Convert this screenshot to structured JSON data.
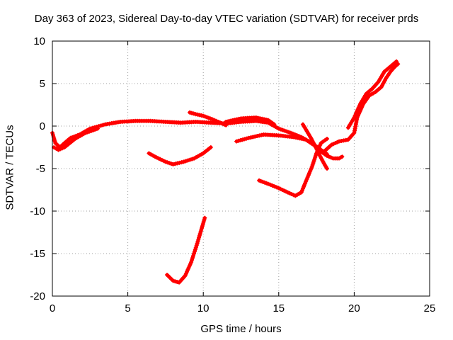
{
  "chart_data": {
    "type": "scatter",
    "title": "Day 363 of 2023, Sidereal Day-to-day VTEC variation (SDTVAR) for receiver prds",
    "xlabel": "GPS time / hours",
    "ylabel": "SDTVAR / TECUs",
    "xlim": [
      0,
      25
    ],
    "ylim": [
      -20,
      10
    ],
    "xticks": [
      0,
      5,
      10,
      15,
      20,
      25
    ],
    "yticks": [
      -20,
      -15,
      -10,
      -5,
      0,
      5,
      10
    ],
    "xtick_labels": [
      "0",
      "5",
      "10",
      "15",
      "20",
      "25"
    ],
    "ytick_labels": [
      "-20",
      "-15",
      "-10",
      "-5",
      "0",
      "5",
      "10"
    ],
    "grid": true,
    "marker_color": "#ff0000",
    "series": [
      {
        "name": "arc-main",
        "points": [
          [
            0.0,
            -0.8
          ],
          [
            0.2,
            -2.0
          ],
          [
            0.5,
            -2.5
          ],
          [
            0.8,
            -2.0
          ],
          [
            1.2,
            -1.4
          ],
          [
            1.8,
            -1.0
          ],
          [
            2.5,
            -0.3
          ],
          [
            3.5,
            0.2
          ],
          [
            4.5,
            0.5
          ],
          [
            5.5,
            0.6
          ],
          [
            6.5,
            0.6
          ],
          [
            7.5,
            0.5
          ],
          [
            8.5,
            0.4
          ],
          [
            9.5,
            0.5
          ],
          [
            10.5,
            0.4
          ],
          [
            11.5,
            0.3
          ],
          [
            12.5,
            0.5
          ],
          [
            13.5,
            0.6
          ],
          [
            14.3,
            0.4
          ],
          [
            15.0,
            -0.3
          ],
          [
            15.8,
            -0.8
          ],
          [
            16.5,
            -1.3
          ],
          [
            17.2,
            -2.0
          ],
          [
            17.8,
            -2.8
          ],
          [
            18.2,
            -3.3
          ]
        ]
      },
      {
        "name": "arc-start-lower",
        "points": [
          [
            0.1,
            -2.5
          ],
          [
            0.4,
            -2.8
          ],
          [
            0.8,
            -2.5
          ],
          [
            1.5,
            -1.5
          ],
          [
            2.2,
            -0.8
          ],
          [
            3.0,
            -0.3
          ]
        ]
      },
      {
        "name": "arc-hump",
        "points": [
          [
            9.1,
            1.6
          ],
          [
            9.5,
            1.4
          ],
          [
            10.0,
            1.2
          ],
          [
            10.6,
            0.8
          ],
          [
            11.0,
            0.5
          ],
          [
            11.5,
            0.1
          ]
        ]
      },
      {
        "name": "arc-mid-upper",
        "points": [
          [
            11.5,
            0.5
          ],
          [
            12.5,
            0.9
          ],
          [
            13.5,
            1.0
          ],
          [
            14.3,
            0.7
          ],
          [
            14.7,
            0.2
          ]
        ]
      },
      {
        "name": "arc-mid-lower",
        "points": [
          [
            12.2,
            -1.8
          ],
          [
            13.0,
            -1.4
          ],
          [
            14.0,
            -1.0
          ],
          [
            15.0,
            -1.1
          ],
          [
            16.0,
            -1.3
          ],
          [
            16.8,
            -1.6
          ],
          [
            17.3,
            -2.2
          ]
        ]
      },
      {
        "name": "arc-bowl",
        "points": [
          [
            6.4,
            -3.2
          ],
          [
            6.8,
            -3.6
          ],
          [
            7.5,
            -4.2
          ],
          [
            8.0,
            -4.5
          ],
          [
            8.7,
            -4.2
          ],
          [
            9.4,
            -3.8
          ],
          [
            10.0,
            -3.2
          ],
          [
            10.5,
            -2.5
          ]
        ]
      },
      {
        "name": "arc-dip",
        "points": [
          [
            7.6,
            -17.5
          ],
          [
            8.0,
            -18.2
          ],
          [
            8.4,
            -18.4
          ],
          [
            8.8,
            -17.6
          ],
          [
            9.2,
            -16.0
          ],
          [
            9.6,
            -13.8
          ],
          [
            9.9,
            -12.0
          ],
          [
            10.1,
            -10.8
          ]
        ]
      },
      {
        "name": "arc-right-low",
        "points": [
          [
            13.7,
            -6.4
          ],
          [
            14.3,
            -6.8
          ],
          [
            15.0,
            -7.3
          ],
          [
            15.6,
            -7.8
          ],
          [
            16.1,
            -8.2
          ],
          [
            16.5,
            -7.8
          ],
          [
            16.8,
            -6.5
          ],
          [
            17.2,
            -4.8
          ],
          [
            17.5,
            -3.2
          ],
          [
            17.8,
            -2.0
          ],
          [
            18.2,
            -1.5
          ]
        ]
      },
      {
        "name": "arc-spike",
        "points": [
          [
            16.6,
            0.2
          ],
          [
            16.8,
            -0.4
          ],
          [
            17.1,
            -1.3
          ],
          [
            17.4,
            -2.3
          ],
          [
            17.7,
            -3.4
          ],
          [
            18.0,
            -4.4
          ],
          [
            18.2,
            -5.0
          ]
        ]
      },
      {
        "name": "arc-right-tail",
        "points": [
          [
            17.8,
            -3.0
          ],
          [
            18.2,
            -3.5
          ],
          [
            18.6,
            -3.8
          ],
          [
            19.0,
            -3.8
          ],
          [
            19.2,
            -3.6
          ]
        ]
      },
      {
        "name": "arc-rise",
        "points": [
          [
            18.0,
            -3.0
          ],
          [
            18.5,
            -2.2
          ],
          [
            19.0,
            -1.8
          ],
          [
            19.6,
            -1.6
          ],
          [
            20.0,
            -0.8
          ],
          [
            20.2,
            1.0
          ],
          [
            20.6,
            2.6
          ],
          [
            21.0,
            3.6
          ],
          [
            21.4,
            4.0
          ],
          [
            21.8,
            4.6
          ],
          [
            22.1,
            5.6
          ],
          [
            22.4,
            6.4
          ],
          [
            22.7,
            7.0
          ],
          [
            22.9,
            7.3
          ]
        ]
      },
      {
        "name": "arc-rise-upper",
        "points": [
          [
            19.6,
            -0.2
          ],
          [
            20.0,
            1.0
          ],
          [
            20.4,
            2.6
          ],
          [
            20.8,
            3.8
          ],
          [
            21.2,
            4.4
          ],
          [
            21.6,
            5.2
          ],
          [
            22.0,
            6.4
          ],
          [
            22.4,
            7.0
          ],
          [
            22.8,
            7.6
          ]
        ]
      }
    ]
  }
}
